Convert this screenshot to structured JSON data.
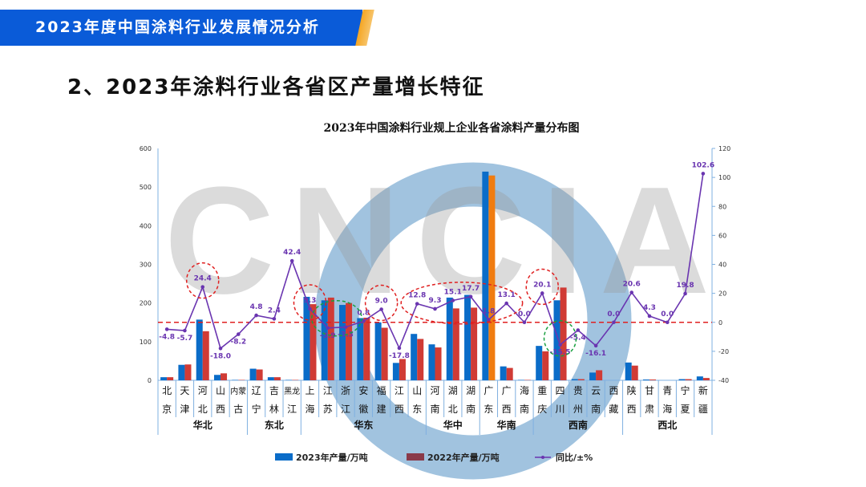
{
  "header": {
    "banner": "2023年度中国涂料行业发展情况分析",
    "heading": "2、2023年涂料行业各省区产量增长特征"
  },
  "watermark": "CNCIA",
  "chart_data": {
    "type": "bar+line",
    "title": "2023年中国涂料行业规上企业各省涂料产量分布图",
    "categories": [
      [
        "北",
        "京"
      ],
      [
        "天",
        "津"
      ],
      [
        "河",
        "北"
      ],
      [
        "山",
        "西"
      ],
      [
        "内蒙",
        "古"
      ],
      [
        "辽",
        "宁"
      ],
      [
        "吉",
        "林"
      ],
      [
        "黑龙",
        "江"
      ],
      [
        "上",
        "海"
      ],
      [
        "江",
        "苏"
      ],
      [
        "浙",
        "江"
      ],
      [
        "安",
        "徽"
      ],
      [
        "福",
        "建"
      ],
      [
        "江",
        "西"
      ],
      [
        "山",
        "东"
      ],
      [
        "河",
        "南"
      ],
      [
        "湖",
        "北"
      ],
      [
        "湖",
        "南"
      ],
      [
        "广",
        "东"
      ],
      [
        "广",
        "西"
      ],
      [
        "海",
        "南"
      ],
      [
        "重",
        "庆"
      ],
      [
        "四",
        "川"
      ],
      [
        "贵",
        "州"
      ],
      [
        "云",
        "南"
      ],
      [
        "西",
        "藏"
      ],
      [
        "陕",
        "西"
      ],
      [
        "甘",
        "肃"
      ],
      [
        "青",
        "海"
      ],
      [
        "宁",
        "夏"
      ],
      [
        "新",
        "疆"
      ]
    ],
    "regions": [
      {
        "name": "华北",
        "start": 0,
        "end": 4
      },
      {
        "name": "东北",
        "start": 5,
        "end": 7
      },
      {
        "name": "华东",
        "start": 8,
        "end": 14
      },
      {
        "name": "华中",
        "start": 15,
        "end": 17
      },
      {
        "name": "华南",
        "start": 18,
        "end": 20
      },
      {
        "name": "西南",
        "start": 21,
        "end": 25
      },
      {
        "name": "西北",
        "start": 26,
        "end": 30
      }
    ],
    "y_left": {
      "range": [
        0,
        600
      ],
      "ticks": [
        0,
        100,
        200,
        300,
        400,
        500,
        600
      ]
    },
    "y_right": {
      "range": [
        -40,
        120
      ],
      "ticks": [
        -40,
        -20,
        0,
        20,
        40,
        60,
        80,
        100,
        120
      ]
    },
    "series": [
      {
        "name": "2023年产量/万吨",
        "type": "bar",
        "axis": "left",
        "color": "#0a6cc8",
        "highlight_color": "#0a6cc8",
        "values": [
          8,
          40,
          157,
          14,
          1,
          30,
          8,
          1,
          216,
          207,
          195,
          161,
          150,
          45,
          120,
          93,
          214,
          221,
          540,
          36,
          1,
          89,
          207,
          3,
          20,
          0,
          46,
          2,
          0,
          3,
          10
        ]
      },
      {
        "name": "2022年产量/万吨",
        "type": "bar",
        "axis": "left",
        "color": "#d03b35",
        "highlight_color": "#f07c10",
        "values": [
          8,
          41,
          127,
          18,
          1,
          28,
          8,
          1,
          197,
          214,
          200,
          162,
          136,
          55,
          107,
          85,
          186,
          188,
          530,
          32,
          1,
          75,
          240,
          3,
          26,
          0,
          38,
          2,
          0,
          3,
          6
        ]
      },
      {
        "name": "同比/±%",
        "type": "line",
        "axis": "right",
        "color": "#6a35b0",
        "values": [
          -4.8,
          -5.7,
          24.4,
          -18.0,
          -8.2,
          4.8,
          2.4,
          42.4,
          9.3,
          -3.9,
          -3.3,
          0.8,
          9.0,
          -17.8,
          12.8,
          9.3,
          15.1,
          17.7,
          1.8,
          13.1,
          0.0,
          20.1,
          -15.5,
          -5.4,
          -16.1,
          0.0,
          20.6,
          4.3,
          0.0,
          19.8,
          102.6
        ]
      }
    ],
    "reference_line": {
      "axis": "right",
      "value": 0,
      "style": "dashed",
      "color": "#e02020"
    },
    "annotations": [
      {
        "index": 2,
        "color": "#e02020"
      },
      {
        "index": 8,
        "color": "#e02020"
      },
      {
        "index": 12,
        "color": "#e02020"
      },
      {
        "index": 21,
        "color": "#e02020"
      },
      {
        "range": [
          14,
          19
        ],
        "color": "#e02020"
      },
      {
        "range": [
          9,
          10
        ],
        "color": "#1aa040"
      },
      {
        "index": 22,
        "color": "#1aa040"
      }
    ],
    "legend": "bottom"
  }
}
